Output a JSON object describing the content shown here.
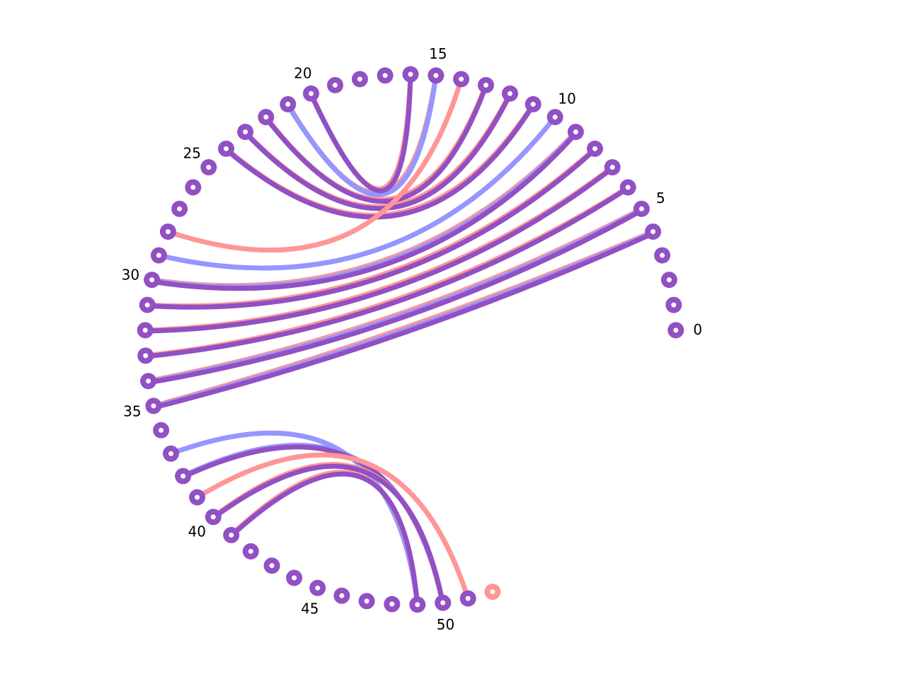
{
  "diagram": {
    "type": "arc-diagram",
    "node_count": 53,
    "labels": [
      {
        "index": 0,
        "text": "0"
      },
      {
        "index": 5,
        "text": "5"
      },
      {
        "index": 10,
        "text": "10"
      },
      {
        "index": 15,
        "text": "15"
      },
      {
        "index": 20,
        "text": "20"
      },
      {
        "index": 25,
        "text": "25"
      },
      {
        "index": 30,
        "text": "30"
      },
      {
        "index": 35,
        "text": "35"
      },
      {
        "index": 40,
        "text": "40"
      },
      {
        "index": 45,
        "text": "45"
      },
      {
        "index": 50,
        "text": "50"
      }
    ],
    "colors": {
      "red": "#ff9696",
      "blue": "#9696ff",
      "purple": "#9150c3",
      "dot_center": "#ffffff"
    },
    "red_only_nodes": [
      52
    ],
    "edges": [
      {
        "from": 4,
        "to": 35,
        "layers": [
          "red",
          "blue",
          "purple"
        ]
      },
      {
        "from": 5,
        "to": 34,
        "layers": [
          "red",
          "blue",
          "purple"
        ]
      },
      {
        "from": 6,
        "to": 33,
        "layers": [
          "red",
          "purple"
        ]
      },
      {
        "from": 7,
        "to": 32,
        "layers": [
          "red",
          "purple"
        ]
      },
      {
        "from": 8,
        "to": 31,
        "layers": [
          "red",
          "purple"
        ]
      },
      {
        "from": 9,
        "to": 30,
        "layers": [
          "red",
          "blue",
          "purple"
        ]
      },
      {
        "from": 10,
        "to": 29,
        "layers": [
          "blue"
        ]
      },
      {
        "from": 11,
        "to": 24,
        "layers": [
          "red",
          "purple"
        ]
      },
      {
        "from": 12,
        "to": 23,
        "layers": [
          "red",
          "purple"
        ]
      },
      {
        "from": 13,
        "to": 22,
        "layers": [
          "red",
          "purple"
        ]
      },
      {
        "from": 14,
        "to": 28,
        "layers": [
          "red"
        ]
      },
      {
        "from": 15,
        "to": 21,
        "layers": [
          "red",
          "blue"
        ]
      },
      {
        "from": 16,
        "to": 20,
        "layers": [
          "red",
          "purple"
        ]
      },
      {
        "from": 37,
        "to": 49,
        "layers": [
          "blue"
        ]
      },
      {
        "from": 38,
        "to": 50,
        "layers": [
          "blue",
          "purple"
        ]
      },
      {
        "from": 39,
        "to": 51,
        "layers": [
          "red"
        ]
      },
      {
        "from": 40,
        "to": 50,
        "layers": [
          "red",
          "purple"
        ]
      },
      {
        "from": 41,
        "to": 49,
        "layers": [
          "red",
          "purple"
        ]
      }
    ]
  }
}
